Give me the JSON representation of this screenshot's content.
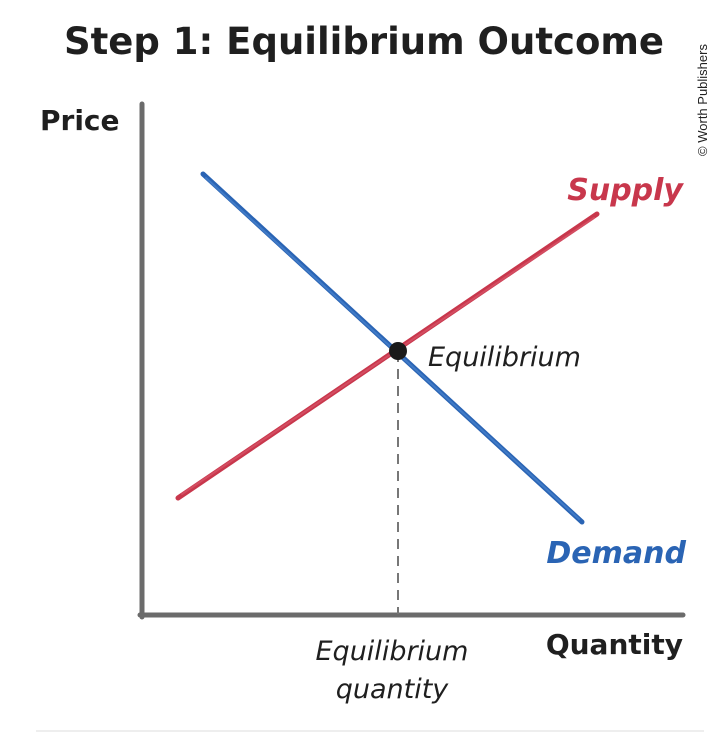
{
  "diagram": {
    "title": "Step 1: Equilibrium Outcome",
    "credit": "© Worth Publishers",
    "y_axis_label": "Price",
    "x_axis_label": "Quantity",
    "supply_label": "Supply",
    "demand_label": "Demand",
    "equilibrium_label": "Equilibrium",
    "equilibrium_quantity_label_line1": "Equilibrium",
    "equilibrium_quantity_label_line2": "quantity"
  },
  "colors": {
    "supply": "#c8374c",
    "demand": "#2a64b4",
    "axes": "#6b6b6b",
    "text": "#1f1f1f",
    "point": "#1a1a1a"
  }
}
